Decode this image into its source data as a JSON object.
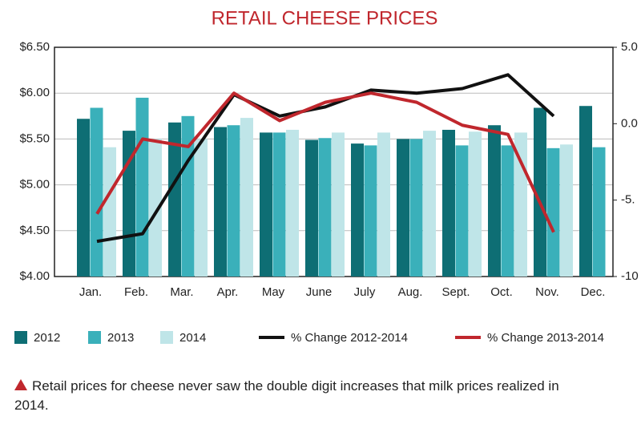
{
  "chart_data": {
    "type": "bar",
    "title": "RETAIL CHEESE PRICES",
    "categories": [
      "Jan.",
      "Feb.",
      "Mar.",
      "Apr.",
      "May",
      "June",
      "July",
      "Aug.",
      "Sept.",
      "Oct.",
      "Nov.",
      "Dec."
    ],
    "series": [
      {
        "name": "2012",
        "color": "#0e6e74",
        "values": [
          5.72,
          5.59,
          5.68,
          5.63,
          5.57,
          5.49,
          5.45,
          5.5,
          5.6,
          5.65,
          5.84,
          5.86
        ]
      },
      {
        "name": "2013",
        "color": "#3ab0ba",
        "values": [
          5.84,
          5.95,
          5.75,
          5.65,
          5.57,
          5.51,
          5.43,
          5.5,
          5.43,
          5.43,
          5.4,
          5.41
        ]
      },
      {
        "name": "2014",
        "color": "#bfe5e8",
        "values": [
          5.41,
          5.5,
          5.5,
          5.73,
          5.6,
          5.57,
          5.57,
          5.59,
          5.58,
          5.57,
          5.44,
          null
        ]
      },
      {
        "name": "% Change 2012-2014",
        "color": "#111111",
        "type": "line",
        "axis": "y2",
        "values": [
          -7.7,
          -7.2,
          -2.4,
          1.9,
          0.5,
          1.1,
          2.2,
          2.0,
          2.3,
          3.2,
          0.5,
          null
        ]
      },
      {
        "name": "% Change 2013-2014",
        "color": "#c0272d",
        "type": "line",
        "axis": "y2",
        "values": [
          -5.9,
          -1.0,
          -1.5,
          2.0,
          0.2,
          1.4,
          2.0,
          1.4,
          -0.1,
          -0.7,
          -7.1,
          null
        ]
      }
    ],
    "ylim": [
      4.0,
      6.5
    ],
    "yticks": [
      {
        "value": 4.0,
        "label": "$4.00"
      },
      {
        "value": 4.5,
        "label": "$4.50"
      },
      {
        "value": 5.0,
        "label": "$5.00"
      },
      {
        "value": 5.5,
        "label": "$5.50"
      },
      {
        "value": 6.0,
        "label": "$6.00"
      },
      {
        "value": 6.5,
        "label": "$6.50"
      }
    ],
    "y2lim": [
      -10,
      5
    ],
    "y2ticks": [
      {
        "value": 5,
        "label": "5.0"
      },
      {
        "value": 0,
        "label": "0.0"
      },
      {
        "value": -5,
        "label": "-5."
      },
      {
        "value": -10,
        "label": "-10"
      }
    ],
    "grid": true,
    "note": "Retail prices for cheese never saw the double digit increases that milk prices realized in 2014."
  }
}
